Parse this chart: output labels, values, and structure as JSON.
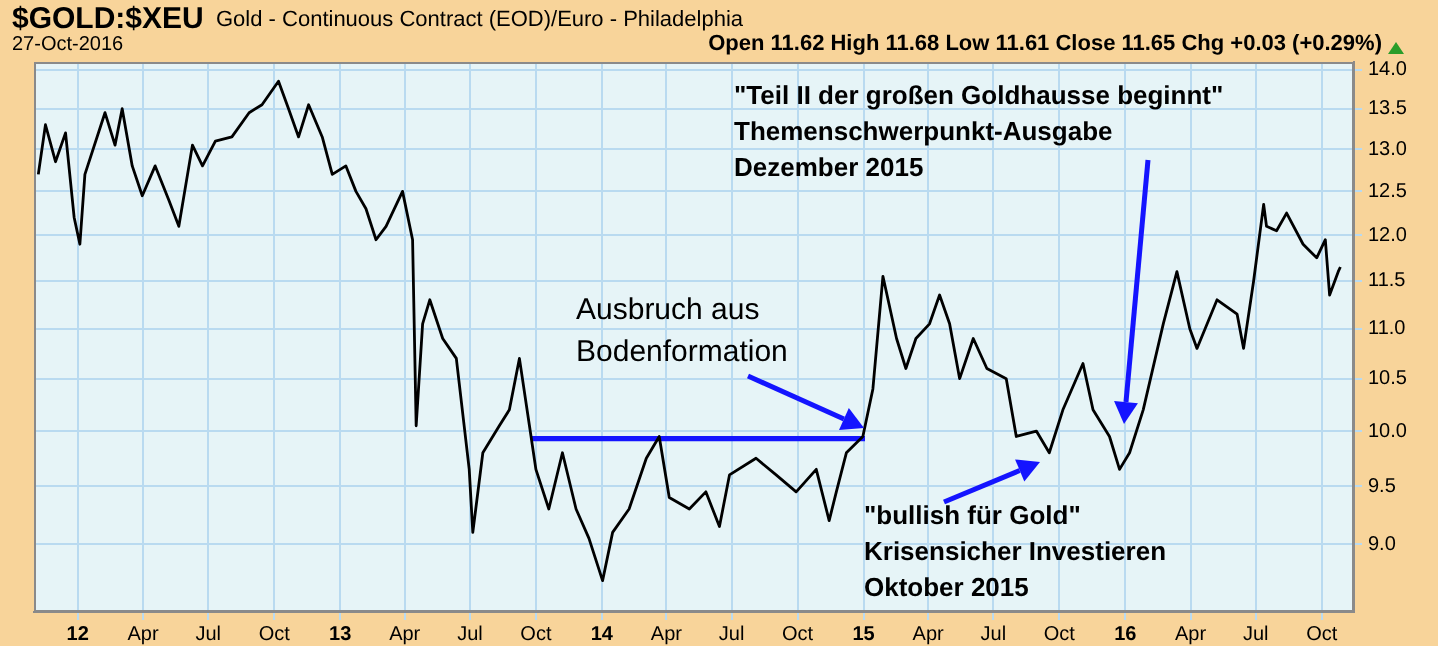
{
  "chart_data": {
    "type": "line",
    "title": "$GOLD:$XEU",
    "subtitle": "Gold - Continuous Contract (EOD)/Euro - Philadelphia",
    "log": "y",
    "grid": true,
    "marker": "none",
    "line_style": "solid",
    "xlim": [
      "2011-11-01",
      "2016-11-15"
    ],
    "xticks": [
      {
        "value": "2012-01-01",
        "label": "12"
      },
      {
        "value": "2012-04-01",
        "label": "Apr"
      },
      {
        "value": "2012-07-01",
        "label": "Jul"
      },
      {
        "value": "2012-10-01",
        "label": "Oct"
      },
      {
        "value": "2013-01-01",
        "label": "13"
      },
      {
        "value": "2013-04-01",
        "label": "Apr"
      },
      {
        "value": "2013-07-01",
        "label": "Jul"
      },
      {
        "value": "2013-10-01",
        "label": "Oct"
      },
      {
        "value": "2014-01-01",
        "label": "14"
      },
      {
        "value": "2014-04-01",
        "label": "Apr"
      },
      {
        "value": "2014-07-01",
        "label": "Jul"
      },
      {
        "value": "2014-10-01",
        "label": "Oct"
      },
      {
        "value": "2015-01-01",
        "label": "15"
      },
      {
        "value": "2015-04-01",
        "label": "Apr"
      },
      {
        "value": "2015-07-01",
        "label": "Jul"
      },
      {
        "value": "2015-10-01",
        "label": "Oct"
      },
      {
        "value": "2016-01-01",
        "label": "16"
      },
      {
        "value": "2016-04-01",
        "label": "Apr"
      },
      {
        "value": "2016-07-01",
        "label": "Jul"
      },
      {
        "value": "2016-10-01",
        "label": "Oct"
      }
    ],
    "ylim": [
      8.45,
      14.1
    ],
    "yticks": [
      {
        "value": 9,
        "label": "9.0"
      },
      {
        "value": 9.5,
        "label": "9.5"
      },
      {
        "value": 10,
        "label": "10.0"
      },
      {
        "value": 10.5,
        "label": "10.5"
      },
      {
        "value": 11,
        "label": "11.0"
      },
      {
        "value": 11.5,
        "label": "11.5"
      },
      {
        "value": 12,
        "label": "12.0"
      },
      {
        "value": 12.5,
        "label": "12.5"
      },
      {
        "value": 13,
        "label": "13.0"
      },
      {
        "value": 13.5,
        "label": "13.5"
      },
      {
        "value": 14,
        "label": "14.0"
      }
    ],
    "series": [
      {
        "color": "#000000",
        "x": [
          "2011-11-07",
          "2011-11-17",
          "2011-12-01",
          "2011-12-15",
          "2011-12-27",
          "2012-01-04",
          "2012-01-11",
          "2012-02-08",
          "2012-02-22",
          "2012-03-03",
          "2012-03-17",
          "2012-03-31",
          "2012-04-18",
          "2012-05-07",
          "2012-05-21",
          "2012-06-09",
          "2012-06-23",
          "2012-07-11",
          "2012-08-03",
          "2012-08-27",
          "2012-09-14",
          "2012-10-07",
          "2012-10-21",
          "2012-11-04",
          "2012-11-18",
          "2012-12-07",
          "2012-12-21",
          "2013-01-09",
          "2013-01-23",
          "2013-02-06",
          "2013-02-20",
          "2013-03-06",
          "2013-03-29",
          "2013-04-12",
          "2013-04-17",
          "2013-04-26",
          "2013-05-06",
          "2013-05-24",
          "2013-06-12",
          "2013-06-30",
          "2013-07-05",
          "2013-07-19",
          "2013-08-11",
          "2013-08-25",
          "2013-09-08",
          "2013-09-22",
          "2013-10-01",
          "2013-10-19",
          "2013-11-07",
          "2013-11-26",
          "2013-12-14",
          "2014-01-02",
          "2014-01-16",
          "2014-02-08",
          "2014-03-04",
          "2014-03-22",
          "2014-04-05",
          "2014-05-03",
          "2014-05-26",
          "2014-06-14",
          "2014-06-28",
          "2014-08-04",
          "2014-09-01",
          "2014-09-29",
          "2014-10-27",
          "2014-11-14",
          "2014-11-24",
          "2014-12-08",
          "2014-12-31",
          "2015-01-14",
          "2015-01-28",
          "2015-02-16",
          "2015-03-01",
          "2015-03-15",
          "2015-04-03",
          "2015-04-17",
          "2015-05-01",
          "2015-05-15",
          "2015-06-03",
          "2015-06-22",
          "2015-07-19",
          "2015-08-02",
          "2015-08-30",
          "2015-09-17",
          "2015-10-06",
          "2015-11-03",
          "2015-11-17",
          "2015-12-10",
          "2015-12-24",
          "2016-01-07",
          "2016-01-26",
          "2016-02-23",
          "2016-03-13",
          "2016-03-31",
          "2016-04-10",
          "2016-05-08",
          "2016-06-05",
          "2016-06-14",
          "2016-06-28",
          "2016-07-12",
          "2016-07-16",
          "2016-07-30",
          "2016-08-13",
          "2016-09-05",
          "2016-09-24",
          "2016-10-06",
          "2016-10-12",
          "2016-10-24",
          "2016-10-27"
        ],
        "values": [
          12.7,
          13.3,
          12.85,
          13.2,
          12.2,
          11.9,
          12.7,
          13.45,
          13.05,
          13.5,
          12.8,
          12.45,
          12.8,
          12.4,
          12.1,
          13.05,
          12.8,
          13.1,
          13.15,
          13.45,
          13.55,
          13.85,
          13.5,
          13.15,
          13.55,
          13.15,
          12.7,
          12.8,
          12.5,
          12.3,
          11.95,
          12.1,
          12.5,
          11.95,
          10.05,
          11.05,
          11.3,
          10.9,
          10.7,
          9.65,
          9.1,
          9.8,
          10.05,
          10.2,
          10.7,
          10.05,
          9.65,
          9.3,
          9.8,
          9.3,
          9.05,
          8.7,
          9.1,
          9.3,
          9.75,
          9.95,
          9.4,
          9.3,
          9.45,
          9.15,
          9.6,
          9.75,
          9.6,
          9.45,
          9.65,
          9.2,
          9.45,
          9.8,
          9.95,
          10.4,
          11.55,
          10.9,
          10.6,
          10.9,
          11.05,
          11.35,
          11.05,
          10.5,
          10.9,
          10.6,
          10.5,
          9.95,
          10.0,
          9.8,
          10.2,
          10.65,
          10.2,
          9.95,
          9.65,
          9.8,
          10.2,
          11.05,
          11.6,
          11.0,
          10.8,
          11.3,
          11.15,
          10.8,
          11.5,
          12.35,
          12.1,
          12.05,
          12.25,
          11.9,
          11.75,
          11.95,
          11.35,
          11.6,
          11.65
        ]
      },
      {
        "type": "line",
        "color": "#1414ff",
        "x": [
          "2013-09-24",
          "2015-01-03"
        ],
        "values": [
          9.93,
          9.93
        ]
      }
    ],
    "annotations": [
      "27-Oct-2016",
      "Open 11.62  High 11.68  Low 11.61  Close 11.65  Chg +0.03 (+0.29%)",
      "Ausbruch aus\nBodenformation",
      "\"bullish für Gold\"\nKrisensicher Investieren\nOktober 2015",
      "\"Teil II der großen Goldhausse beginnt\"\nThemenschwerpunkt-Ausgabe\nDezember 2015"
    ]
  }
}
